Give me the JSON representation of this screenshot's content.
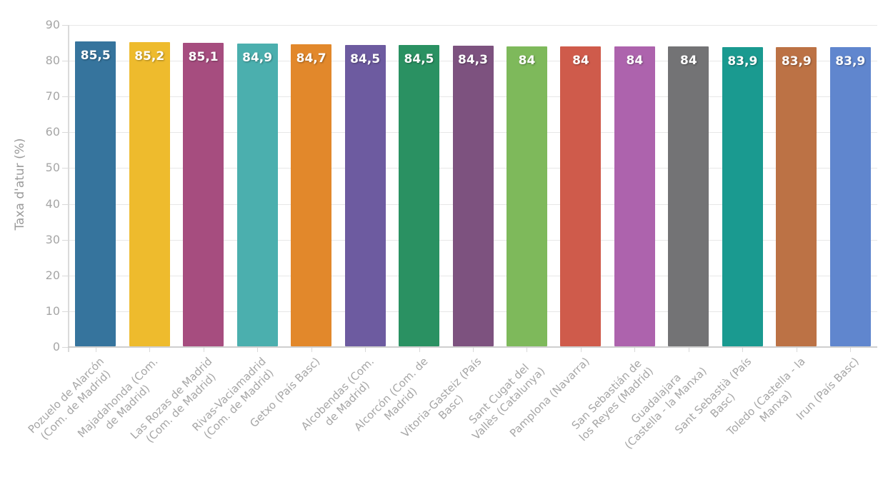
{
  "chart_data": {
    "type": "bar",
    "title": "",
    "ylabel": "Taxa d'atur (%)",
    "xlabel": "",
    "ylim": [
      0,
      90
    ],
    "yticks": [
      0,
      10,
      20,
      30,
      40,
      50,
      60,
      70,
      80,
      90
    ],
    "grid": true,
    "legend": false,
    "background_color": "#ffffff",
    "axis_text_color": "#a6a6a6",
    "categories": [
      "Pozuelo de Alarcón\n(Com. de Madrid)",
      "Majadahonda (Com.\nde Madrid)",
      "Las Rozas de Madrid\n(Com. de Madrid)",
      "Rivas-Vaciamadrid\n(Com. de Madrid)",
      "Getxo (País Basc)",
      "Alcobendas (Com.\nde Madrid)",
      "Alcorcón (Com. de\nMadrid)",
      "Vitoria-Gasteiz (País\nBasc)",
      "Sant Cugat del\nVallès (Catalunya)",
      "Pamplona (Navarra)",
      "San Sebastián de\nlos Reyes (Madrid)",
      "Guadalajara\n(Castella - la Manxa)",
      "Sant Sebastià (País\nBasc)",
      "Toledo (Castella - la\nManxa)",
      "Irun (País Basc)"
    ],
    "values": [
      85.5,
      85.2,
      85.1,
      84.9,
      84.7,
      84.5,
      84.5,
      84.3,
      84,
      84,
      84,
      84,
      83.9,
      83.9,
      83.9
    ],
    "value_labels": [
      "85,5",
      "85,2",
      "85,1",
      "84,9",
      "84,7",
      "84,5",
      "84,5",
      "84,3",
      "84",
      "84",
      "84",
      "84",
      "83,9",
      "83,9",
      "83,9"
    ],
    "colors": [
      "#36749d",
      "#eebb2d",
      "#a64d7f",
      "#4bafae",
      "#e2882b",
      "#6d5ba0",
      "#2a9162",
      "#7d527f",
      "#7eb95b",
      "#cf5b4b",
      "#ad63ad",
      "#737375",
      "#1a9a90",
      "#bc7245",
      "#6086ce"
    ]
  }
}
